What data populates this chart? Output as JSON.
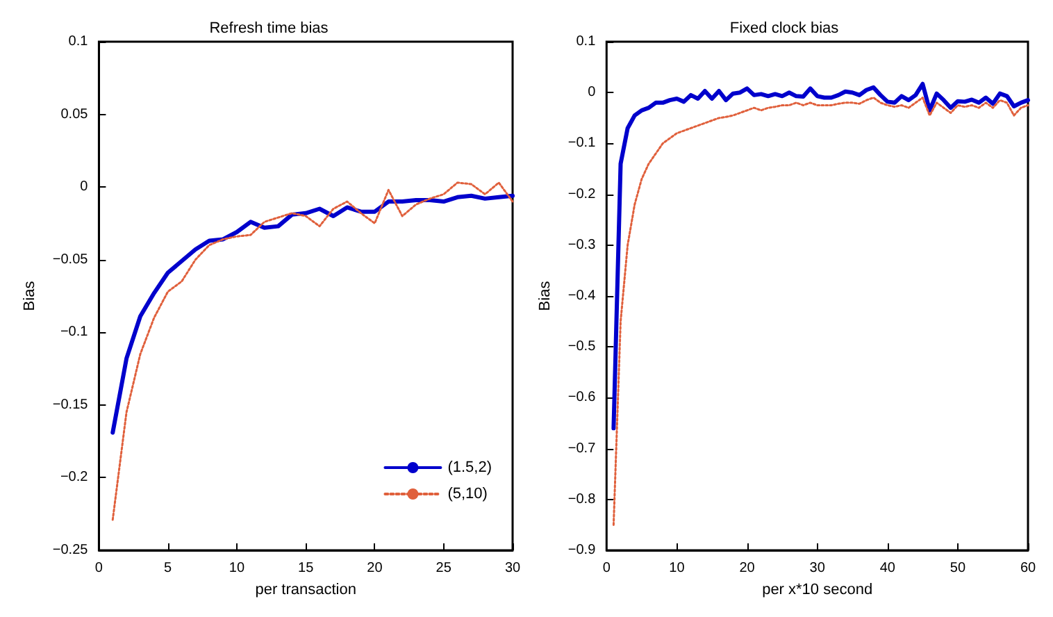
{
  "chart_data": [
    {
      "type": "line",
      "title": "Refresh time bias",
      "xlabel": "per transaction",
      "ylabel": "Bias",
      "xlim": [
        0,
        30
      ],
      "xticks": [
        0,
        5,
        10,
        15,
        20,
        25,
        30
      ],
      "ylim": [
        -0.25,
        0.1
      ],
      "yticks": [
        -0.25,
        -0.2,
        -0.15,
        -0.1,
        -0.05,
        0,
        0.05,
        0.1
      ],
      "grid": false,
      "legend": "bottom right",
      "marker": "none",
      "x": [
        1,
        2,
        3,
        4,
        5,
        6,
        7,
        8,
        9,
        10,
        11,
        12,
        13,
        14,
        15,
        16,
        17,
        18,
        19,
        20,
        21,
        22,
        23,
        24,
        25,
        26,
        27,
        28,
        29,
        30
      ],
      "series": [
        {
          "name": "(1.5,2)",
          "color": "#0000cc",
          "line_style": "solid",
          "values": [
            -0.169,
            -0.118,
            -0.089,
            -0.073,
            -0.059,
            -0.051,
            -0.043,
            -0.037,
            -0.036,
            -0.031,
            -0.024,
            -0.028,
            -0.027,
            -0.019,
            -0.018,
            -0.015,
            -0.02,
            -0.014,
            -0.017,
            -0.017,
            -0.01,
            -0.01,
            -0.009,
            -0.009,
            -0.01,
            -0.007,
            -0.006,
            -0.008,
            -0.007,
            -0.006
          ]
        },
        {
          "name": "(5,10)",
          "color": "#e0603c",
          "line_style": "dotted",
          "values": [
            -0.229,
            -0.155,
            -0.115,
            -0.09,
            -0.072,
            -0.065,
            -0.05,
            -0.04,
            -0.036,
            -0.034,
            -0.033,
            -0.024,
            -0.021,
            -0.018,
            -0.02,
            -0.027,
            -0.015,
            -0.01,
            -0.018,
            -0.025,
            -0.002,
            -0.02,
            -0.012,
            -0.008,
            -0.005,
            0.003,
            0.002,
            -0.005,
            0.003,
            -0.01
          ]
        }
      ]
    },
    {
      "type": "line",
      "title": "Fixed clock bias",
      "xlabel": "per x*10 second",
      "ylabel": "Bias",
      "xlim": [
        0,
        60
      ],
      "xticks": [
        0,
        10,
        20,
        30,
        40,
        50,
        60
      ],
      "ylim": [
        -0.9,
        0.1
      ],
      "yticks": [
        -0.9,
        -0.8,
        -0.7,
        -0.6,
        -0.5,
        -0.4,
        -0.3,
        -0.2,
        -0.1,
        0,
        0.1
      ],
      "grid": false,
      "legend": false,
      "marker": "none",
      "x": [
        1,
        2,
        3,
        4,
        5,
        6,
        7,
        8,
        9,
        10,
        11,
        12,
        13,
        14,
        15,
        16,
        17,
        18,
        19,
        20,
        21,
        22,
        23,
        24,
        25,
        26,
        27,
        28,
        29,
        30,
        31,
        32,
        33,
        34,
        35,
        36,
        37,
        38,
        39,
        40,
        41,
        42,
        43,
        44,
        45,
        46,
        47,
        48,
        49,
        50,
        51,
        52,
        53,
        54,
        55,
        56,
        57,
        58,
        59,
        60
      ],
      "series": [
        {
          "color": "#0000cc",
          "line_style": "solid",
          "values": [
            -0.66,
            -0.14,
            -0.07,
            -0.045,
            -0.035,
            -0.03,
            -0.02,
            -0.02,
            -0.015,
            -0.012,
            -0.018,
            -0.005,
            -0.012,
            0.003,
            -0.012,
            0.003,
            -0.015,
            -0.002,
            0,
            0.008,
            -0.005,
            -0.003,
            -0.007,
            -0.003,
            -0.007,
            0,
            -0.007,
            -0.008,
            0.008,
            -0.007,
            -0.01,
            -0.01,
            -0.005,
            0.002,
            0,
            -0.005,
            0.005,
            0.01,
            -0.005,
            -0.018,
            -0.02,
            -0.007,
            -0.015,
            -0.005,
            0.017,
            -0.035,
            -0.002,
            -0.015,
            -0.03,
            -0.017,
            -0.018,
            -0.014,
            -0.02,
            -0.01,
            -0.022,
            -0.002,
            -0.007,
            -0.027,
            -0.02,
            -0.015
          ]
        },
        {
          "color": "#e0603c",
          "line_style": "dotted",
          "values": [
            -0.85,
            -0.45,
            -0.3,
            -0.22,
            -0.17,
            -0.14,
            -0.12,
            -0.1,
            -0.09,
            -0.08,
            -0.075,
            -0.07,
            -0.065,
            -0.06,
            -0.055,
            -0.05,
            -0.048,
            -0.045,
            -0.04,
            -0.035,
            -0.03,
            -0.035,
            -0.03,
            -0.028,
            -0.025,
            -0.025,
            -0.02,
            -0.025,
            -0.02,
            -0.025,
            -0.025,
            -0.025,
            -0.022,
            -0.02,
            -0.02,
            -0.022,
            -0.015,
            -0.01,
            -0.02,
            -0.025,
            -0.028,
            -0.025,
            -0.03,
            -0.02,
            -0.01,
            -0.045,
            -0.02,
            -0.03,
            -0.04,
            -0.025,
            -0.028,
            -0.025,
            -0.03,
            -0.02,
            -0.03,
            -0.015,
            -0.02,
            -0.045,
            -0.03,
            -0.025
          ]
        }
      ]
    }
  ]
}
